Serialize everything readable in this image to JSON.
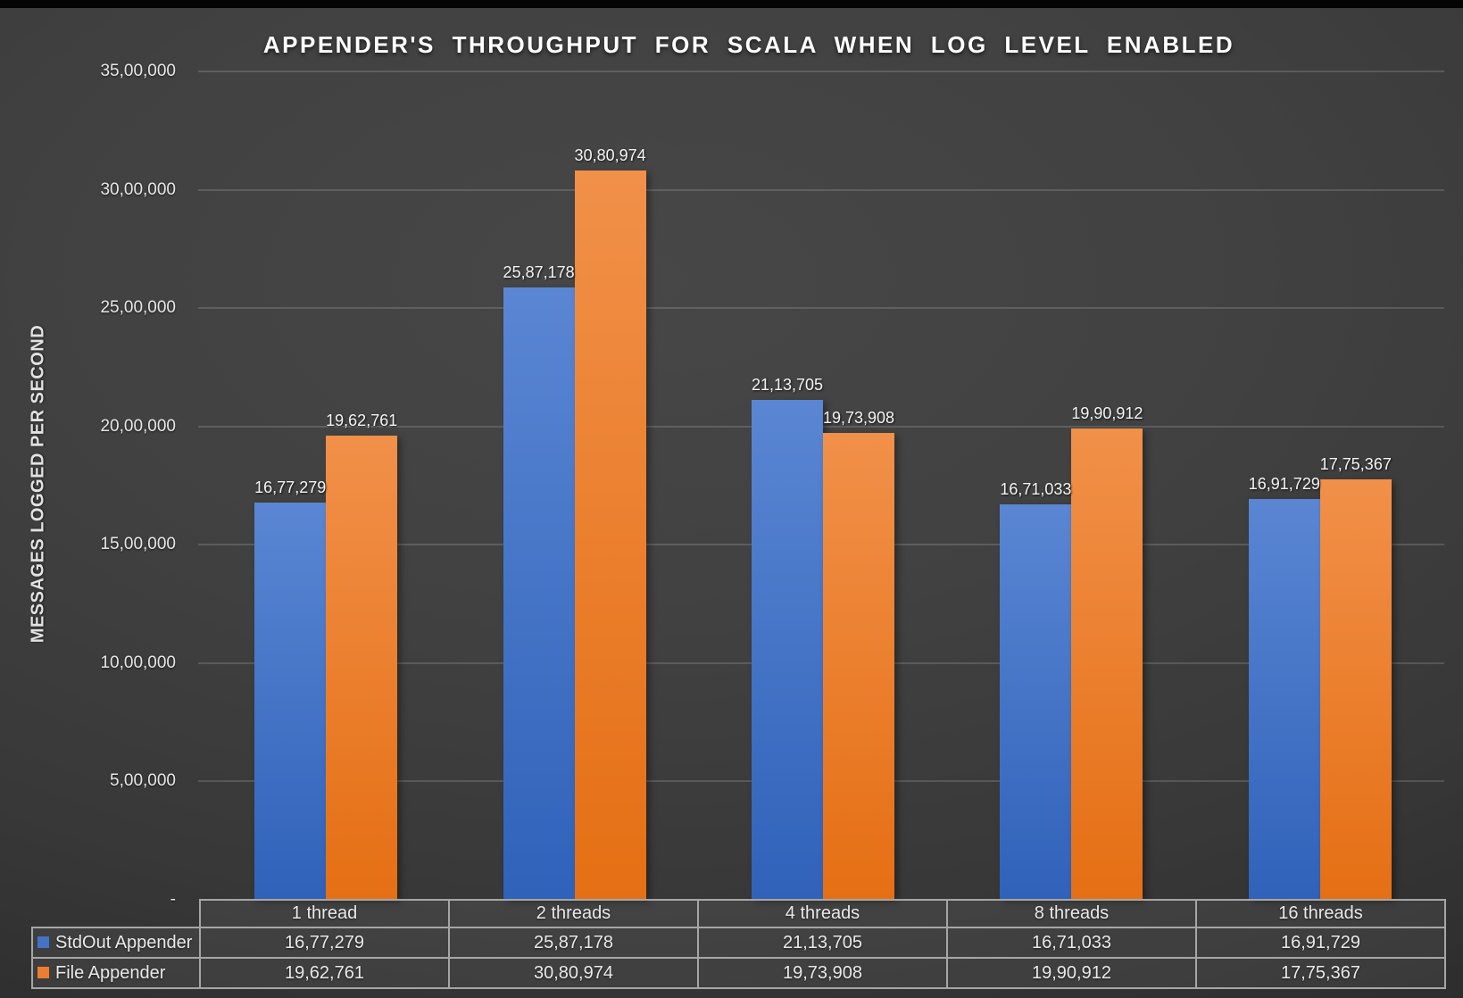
{
  "chart_data": {
    "type": "bar",
    "title": "APPENDER'S THROUGHPUT FOR SCALA WHEN LOG LEVEL ENABLED",
    "y_axis_title": "MESSAGES LOGGED PER SECOND",
    "categories": [
      "1 thread",
      "2 threads",
      "4 threads",
      "8 threads",
      "16 threads"
    ],
    "series": [
      {
        "name": "StdOut Appender",
        "color": "#4472C4",
        "gradient_top": "#5a86d3",
        "gradient_bottom": "#3062ba",
        "values": [
          1677279,
          2587178,
          2113705,
          1671033,
          1691729
        ],
        "labels": [
          "16,77,279",
          "25,87,178",
          "21,13,705",
          "16,71,033",
          "16,91,729"
        ]
      },
      {
        "name": "File Appender",
        "color": "#ED7D31",
        "gradient_top": "#f19049",
        "gradient_bottom": "#e56f14",
        "values": [
          1962761,
          3080974,
          1973908,
          1990912,
          1775367
        ],
        "labels": [
          "19,62,761",
          "30,80,974",
          "19,73,908",
          "19,90,912",
          "17,75,367"
        ]
      }
    ],
    "y_ticks": [
      {
        "value": 3500000,
        "label": "35,00,000"
      },
      {
        "value": 3000000,
        "label": "30,00,000"
      },
      {
        "value": 2500000,
        "label": "25,00,000"
      },
      {
        "value": 2000000,
        "label": "20,00,000"
      },
      {
        "value": 1500000,
        "label": "15,00,000"
      },
      {
        "value": 1000000,
        "label": "10,00,000"
      },
      {
        "value": 500000,
        "label": "5,00,000"
      },
      {
        "value": 0,
        "label": "-"
      }
    ],
    "ylim": [
      0,
      3500000
    ],
    "grid": true,
    "legend_position": "table-row-headers",
    "colors": {
      "background": "#3a3a3a",
      "top_strip": "#040404",
      "gridline": "#5a5a5a",
      "table_border": "#a6a6a6",
      "title_text": "#ffffff",
      "tick_text": "#e6e6e6"
    }
  }
}
